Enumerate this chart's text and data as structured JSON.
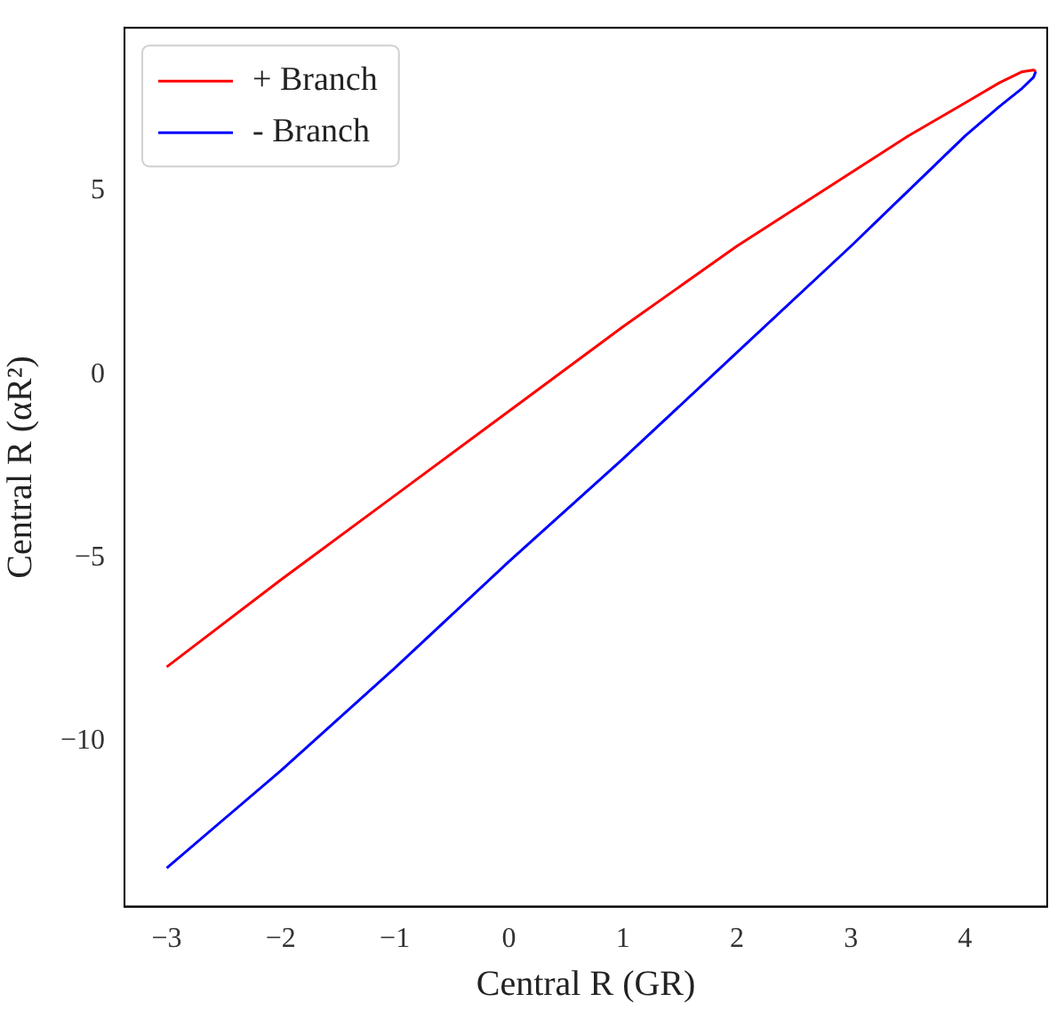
{
  "chart_data": {
    "type": "line",
    "xlabel": "Central R (GR)",
    "ylabel": "Central R (αR²)",
    "xlim": [
      -3.37,
      4.72
    ],
    "ylim": [
      -14.5,
      9.45
    ],
    "xticks": [
      -3,
      -2,
      -1,
      0,
      1,
      2,
      3,
      4
    ],
    "yticks": [
      -10,
      -5,
      0,
      5
    ],
    "grid": false,
    "legend": "top left",
    "line_style": "solid",
    "marker": "none",
    "series": [
      {
        "name": "+ Branch",
        "color": "#ff0000",
        "x": [
          -3,
          -2,
          -1,
          0,
          1,
          2,
          3,
          3.5,
          4,
          4.3,
          4.5,
          4.6,
          4.62
        ],
        "values": [
          -7.97,
          -5.6,
          -3.3,
          -1.0,
          1.3,
          3.5,
          5.5,
          6.5,
          7.4,
          7.95,
          8.25,
          8.3,
          8.26
        ]
      },
      {
        "name": "- Branch",
        "color": "#0000ff",
        "x": [
          -3,
          -2,
          -1,
          0,
          1,
          2,
          3,
          3.5,
          4,
          4.3,
          4.5,
          4.6,
          4.62
        ],
        "values": [
          -13.45,
          -10.8,
          -8.0,
          -5.1,
          -2.3,
          0.6,
          3.5,
          5.0,
          6.5,
          7.3,
          7.8,
          8.1,
          8.26
        ]
      }
    ]
  }
}
